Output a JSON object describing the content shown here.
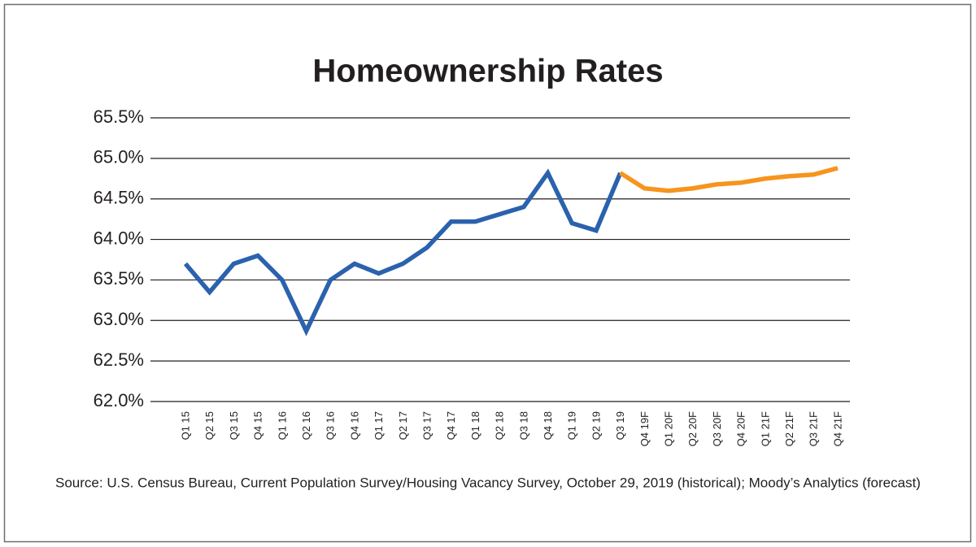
{
  "chart_data": {
    "type": "line",
    "title": "Homeownership Rates",
    "source": "Source: U.S. Census Bureau, Current Population Survey/Housing Vacancy Survey, October 29, 2019 (historical); Moody’s Analytics (forecast)",
    "categories": [
      "Q1 15",
      "Q2 15",
      "Q3 15",
      "Q4 15",
      "Q1 16",
      "Q2 16",
      "Q3 16",
      "Q4 16",
      "Q1 17",
      "Q2 17",
      "Q3 17",
      "Q4 17",
      "Q1 18",
      "Q2 18",
      "Q3 18",
      "Q4 18",
      "Q1 19",
      "Q2 19",
      "Q3 19",
      "Q4 19F",
      "Q1 20F",
      "Q2 20F",
      "Q3 20F",
      "Q4 20F",
      "Q1 21F",
      "Q2 21F",
      "Q3 21F",
      "Q4 21F"
    ],
    "series": [
      {
        "color": "#2a62ad",
        "values": [
          63.7,
          63.35,
          63.7,
          63.8,
          63.5,
          62.87,
          63.5,
          63.7,
          63.58,
          63.7,
          63.9,
          64.22,
          64.22,
          64.31,
          64.4,
          64.82,
          64.2,
          64.11,
          64.82,
          null,
          null,
          null,
          null,
          null,
          null,
          null,
          null,
          null
        ]
      },
      {
        "color": "#f7941d",
        "values": [
          null,
          null,
          null,
          null,
          null,
          null,
          null,
          null,
          null,
          null,
          null,
          null,
          null,
          null,
          null,
          null,
          null,
          null,
          64.82,
          64.63,
          64.6,
          64.63,
          64.68,
          64.7,
          64.75,
          64.78,
          64.8,
          64.88
        ]
      }
    ],
    "ylim": [
      62,
      65.5
    ],
    "yticks": [
      {
        "value": 62,
        "label": "62.0%"
      },
      {
        "value": 62.5,
        "label": "62.5%"
      },
      {
        "value": 63,
        "label": "63.0%"
      },
      {
        "value": 63.5,
        "label": "63.5%"
      },
      {
        "value": 64,
        "label": "64.0%"
      },
      {
        "value": 64.5,
        "label": "64.5%"
      },
      {
        "value": 65,
        "label": "65.0%"
      },
      {
        "value": 65.5,
        "label": "65.5%"
      }
    ],
    "grid": true
  }
}
